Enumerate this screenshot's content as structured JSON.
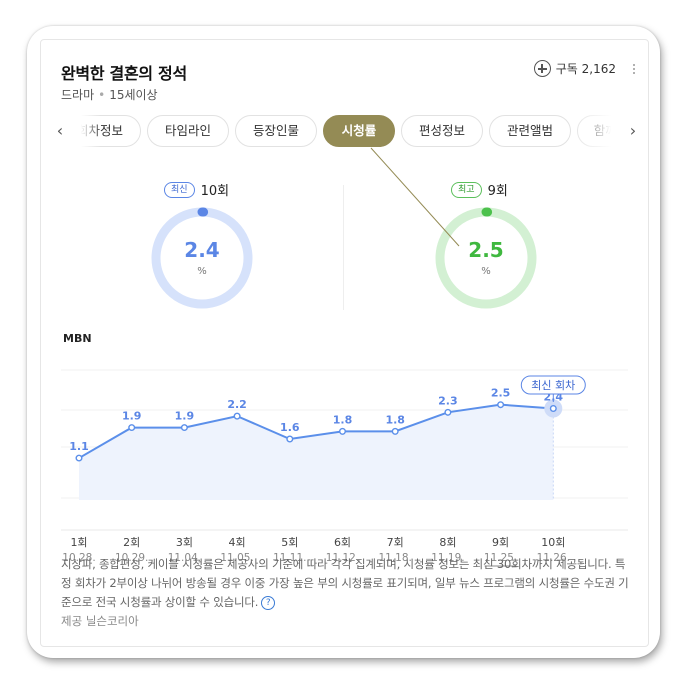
{
  "program": {
    "title": "완벽한 결혼의 정석",
    "genre": "드라마",
    "rating": "15세이상",
    "subscribe_label": "구독",
    "subscribe_count": "2,162"
  },
  "tabs": [
    {
      "label": "회차정보",
      "active": false
    },
    {
      "label": "타임라인",
      "active": false
    },
    {
      "label": "등장인물",
      "active": false
    },
    {
      "label": "시청률",
      "active": true
    },
    {
      "label": "편성정보",
      "active": false
    },
    {
      "label": "관련앨범",
      "active": false
    },
    {
      "label": "함께 볼",
      "active": false
    }
  ],
  "latest": {
    "badge": "최신",
    "episode": "10회",
    "value": "2.4",
    "unit": "%"
  },
  "best": {
    "badge": "최고",
    "episode": "9회",
    "value": "2.5",
    "unit": "%"
  },
  "colors": {
    "accent": "#948b55",
    "blue": "#5b86e5",
    "green": "#4cc14c",
    "line": "#5b8fea"
  },
  "chart_data": {
    "type": "line",
    "title": "MBN",
    "series": [
      {
        "values": [
          1.1,
          1.9,
          1.9,
          2.2,
          1.6,
          1.8,
          1.8,
          2.3,
          2.5,
          2.4
        ]
      }
    ],
    "categories": [
      "1회",
      "2회",
      "3회",
      "4회",
      "5회",
      "6회",
      "7회",
      "8회",
      "9회",
      "10회"
    ],
    "dates": [
      "10.28.",
      "10.29.",
      "11.04.",
      "11.05.",
      "11.11.",
      "11.12.",
      "11.18.",
      "11.19.",
      "11.25.",
      "11.26."
    ],
    "annotation": "최신 회차",
    "ylim": [
      0,
      3.2
    ],
    "grid": true
  },
  "footnote": "지상파, 종합편성, 케이블 시청률은 제공사의 기준에 따라 각각 집계되며, 시청률 정보는 최신 30회차까지 제공됩니다. 특정 회차가 2부이상 나뉘어 방송될 경우 이중 가장 높은 부의 시청률로 표기되며, 일부 뉴스 프로그램의 시청률은 수도권 기준으로 전국 시청률과 상이할 수 있습니다.",
  "source": "제공 닐슨코리아"
}
